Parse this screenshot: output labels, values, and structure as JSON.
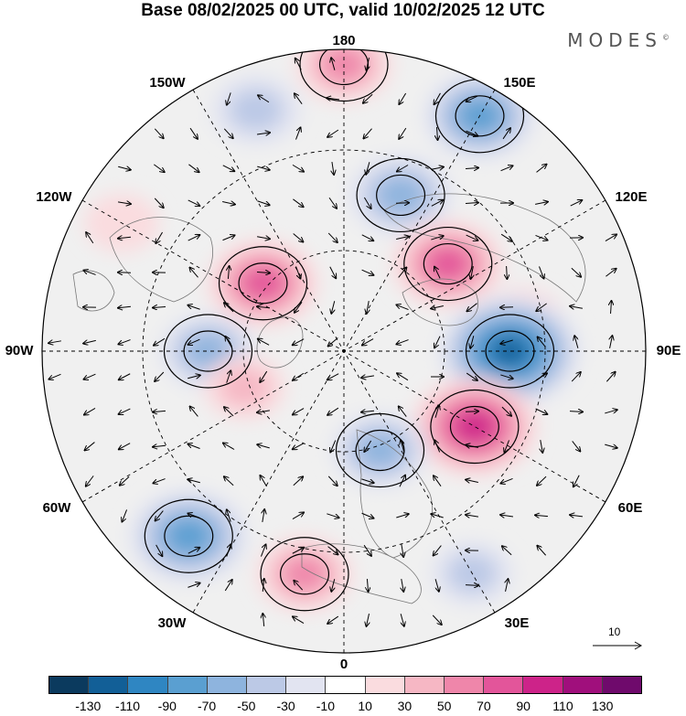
{
  "title": "Base 08/02/2025 00 UTC, valid 10/02/2025 12 UTC",
  "brand": "MODES",
  "brand_mark": "©",
  "longitude_labels": {
    "top": "180",
    "bottom": "0",
    "left": "90W",
    "right": "90E",
    "upper_left": "150W",
    "upper_right": "150E",
    "mid_left_upper": "120W",
    "mid_right_upper": "120E",
    "mid_left_lower": "60W",
    "mid_right_lower": "60E",
    "lower_left": "30W",
    "lower_right": "30E"
  },
  "reference_vector": {
    "label": "10"
  },
  "colorbar": {
    "colors": [
      "#0b3a5e",
      "#125f97",
      "#2f86c2",
      "#5a9fd1",
      "#8eb4de",
      "#bcc9e6",
      "#e2e4f1",
      "#ffffff",
      "#fadcdf",
      "#f6b7c4",
      "#ef86aa",
      "#e3559a",
      "#cd2389",
      "#a00f7c",
      "#6f0a6c"
    ],
    "tick_labels": [
      "-130",
      "-110",
      "-90",
      "-70",
      "-50",
      "-30",
      "-10",
      "10",
      "30",
      "50",
      "70",
      "90",
      "110",
      "130"
    ]
  },
  "anomaly_blobs": [
    {
      "lon": 160,
      "r": 0.55,
      "value": -70
    },
    {
      "lon": 180,
      "r": 0.95,
      "value": 60
    },
    {
      "lon": 150,
      "r": 0.9,
      "value": -80
    },
    {
      "lon": 130,
      "r": 0.45,
      "value": 80
    },
    {
      "lon": 100,
      "r": 0.6,
      "value": 40
    },
    {
      "lon": 90,
      "r": 0.55,
      "value": -120
    },
    {
      "lon": 60,
      "r": 0.5,
      "value": 100
    },
    {
      "lon": 20,
      "r": 0.35,
      "value": -60
    },
    {
      "lon": -10,
      "r": 0.75,
      "value": 60
    },
    {
      "lon": -40,
      "r": 0.8,
      "value": -90
    },
    {
      "lon": -90,
      "r": 0.45,
      "value": -60
    },
    {
      "lon": -70,
      "r": 0.35,
      "value": 40
    },
    {
      "lon": -130,
      "r": 0.35,
      "value": 80
    },
    {
      "lon": -160,
      "r": 0.85,
      "value": -50
    },
    {
      "lon": -120,
      "r": 0.85,
      "value": 30
    },
    {
      "lon": 30,
      "r": 0.85,
      "value": -40
    }
  ]
}
